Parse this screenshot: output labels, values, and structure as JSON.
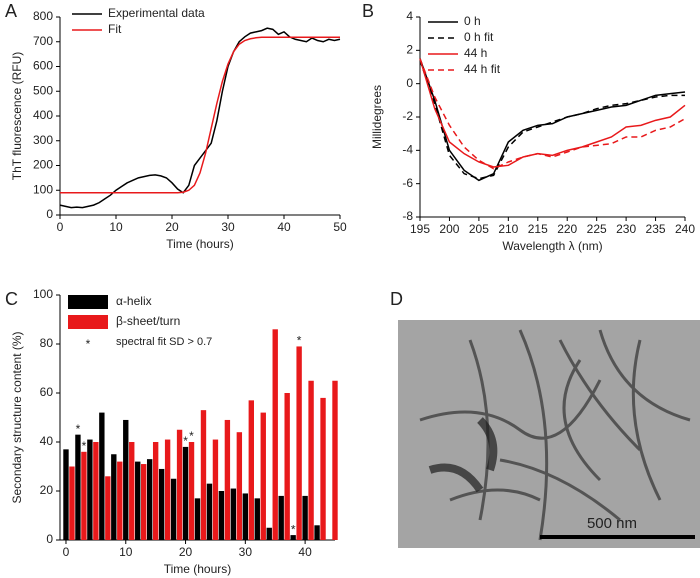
{
  "chart_data": [
    {
      "type": "line",
      "panel": "A",
      "x_label": "Time (hours)",
      "y_label": "ThT fluorescence (RFU)",
      "x": [
        0,
        1,
        2,
        3,
        4,
        5,
        6,
        7,
        8,
        9,
        10,
        11,
        12,
        13,
        14,
        15,
        16,
        17,
        18,
        19,
        20,
        21,
        22,
        23,
        24,
        25,
        26,
        27,
        28,
        29,
        30,
        31,
        32,
        33,
        34,
        35,
        36,
        37,
        38,
        39,
        40,
        41,
        42,
        43,
        44,
        45,
        46,
        47,
        48,
        49,
        50
      ],
      "series": [
        {
          "name": "Experimental data",
          "color": "#000000",
          "dashed": false,
          "values": [
            40,
            35,
            30,
            32,
            30,
            35,
            40,
            50,
            65,
            80,
            100,
            115,
            130,
            140,
            150,
            155,
            160,
            162,
            158,
            150,
            130,
            105,
            90,
            120,
            200,
            230,
            260,
            290,
            380,
            500,
            600,
            660,
            700,
            720,
            735,
            740,
            745,
            755,
            750,
            730,
            740,
            720,
            710,
            705,
            700,
            715,
            705,
            700,
            710,
            705,
            710
          ]
        },
        {
          "name": "Fit",
          "color": "#e8191b",
          "dashed": false,
          "values": [
            90,
            90,
            90,
            90,
            90,
            90,
            90,
            90,
            90,
            90,
            90,
            90,
            90,
            90,
            90,
            90,
            90,
            90,
            90,
            90,
            90,
            90,
            92,
            100,
            120,
            170,
            250,
            350,
            450,
            540,
            610,
            660,
            690,
            705,
            712,
            716,
            718,
            718,
            718,
            718,
            718,
            718,
            718,
            718,
            718,
            718,
            718,
            718,
            718,
            718,
            718
          ]
        }
      ],
      "xlim": [
        0,
        50
      ],
      "xticks": [
        0,
        10,
        20,
        30,
        40,
        50
      ],
      "ylim": [
        0,
        800
      ],
      "yticks": [
        0,
        100,
        200,
        300,
        400,
        500,
        600,
        700,
        800
      ]
    },
    {
      "type": "line",
      "panel": "B",
      "x_label": "Wavelength λ (nm)",
      "y_label": "Millidegrees",
      "x": [
        195,
        197.5,
        200,
        202.5,
        205,
        207.5,
        210,
        212.5,
        215,
        217.5,
        220,
        222.5,
        225,
        227.5,
        230,
        232.5,
        235,
        237.5,
        240
      ],
      "series": [
        {
          "name": "0 h",
          "color": "#000000",
          "dashed": false,
          "values": [
            1.5,
            -1,
            -4,
            -5.2,
            -5.8,
            -5.4,
            -3.5,
            -2.8,
            -2.5,
            -2.4,
            -2.0,
            -1.8,
            -1.6,
            -1.4,
            -1.3,
            -1.0,
            -0.7,
            -0.6,
            -0.5
          ]
        },
        {
          "name": "0 h fit",
          "color": "#000000",
          "dashed": true,
          "values": [
            1.4,
            -1.2,
            -4.3,
            -5.4,
            -5.7,
            -5.5,
            -3.8,
            -2.9,
            -2.6,
            -2.3,
            -2.0,
            -1.8,
            -1.5,
            -1.3,
            -1.2,
            -1.0,
            -0.8,
            -0.7,
            -0.7
          ]
        },
        {
          "name": "44 h",
          "color": "#e8191b",
          "dashed": false,
          "values": [
            1.5,
            -1.5,
            -3.5,
            -4.2,
            -4.7,
            -5.0,
            -4.9,
            -4.4,
            -4.2,
            -4.3,
            -4.0,
            -3.8,
            -3.5,
            -3.2,
            -2.6,
            -2.5,
            -2.2,
            -2.0,
            -1.3
          ]
        },
        {
          "name": "44 h fit",
          "color": "#e8191b",
          "dashed": true,
          "values": [
            1.5,
            -0.8,
            -2.5,
            -3.8,
            -4.6,
            -5.1,
            -4.7,
            -4.4,
            -4.2,
            -4.4,
            -4.1,
            -3.8,
            -3.7,
            -3.6,
            -3.2,
            -3.2,
            -2.8,
            -2.6,
            -2.1
          ]
        }
      ],
      "xlim": [
        195,
        240
      ],
      "xticks": [
        195,
        200,
        205,
        210,
        215,
        220,
        225,
        230,
        235,
        240
      ],
      "ylim": [
        -8,
        4
      ],
      "yticks": [
        -8,
        -6,
        -4,
        -2,
        0,
        2,
        4
      ]
    },
    {
      "type": "bar",
      "panel": "C",
      "x_label": "Time (hours)",
      "y_label": "Secondary structure content (%)",
      "x": [
        0,
        2,
        4,
        6,
        8,
        10,
        12,
        14,
        16,
        18,
        20,
        22,
        24,
        26,
        28,
        30,
        32,
        34,
        36,
        38,
        40,
        42,
        44
      ],
      "series": [
        {
          "name": "α-helix",
          "color": "#000000",
          "flagged": [
            1,
            10,
            19
          ],
          "values": [
            37,
            43,
            41,
            52,
            35,
            49,
            32,
            33,
            29,
            25,
            38,
            17,
            23,
            20,
            21,
            19,
            17,
            5,
            18,
            2,
            18,
            6,
            null
          ]
        },
        {
          "name": "β-sheet/turn",
          "color": "#e8191b",
          "flagged": [
            1,
            10,
            19
          ],
          "values": [
            30,
            36,
            40,
            26,
            32,
            40,
            31,
            40,
            41,
            45,
            40,
            53,
            41,
            49,
            44,
            57,
            52,
            86,
            60,
            79,
            65,
            58,
            65
          ]
        }
      ],
      "flag_symbol": "*",
      "flag_note": "spectral fit SD > 0.7",
      "xlim": [
        -1,
        45
      ],
      "xticks": [
        0,
        10,
        20,
        30,
        40
      ],
      "ylim": [
        0,
        100
      ],
      "yticks": [
        0,
        20,
        40,
        60,
        80,
        100
      ]
    }
  ],
  "image_panel": {
    "panel": "D",
    "scale_label": "500 nm"
  }
}
